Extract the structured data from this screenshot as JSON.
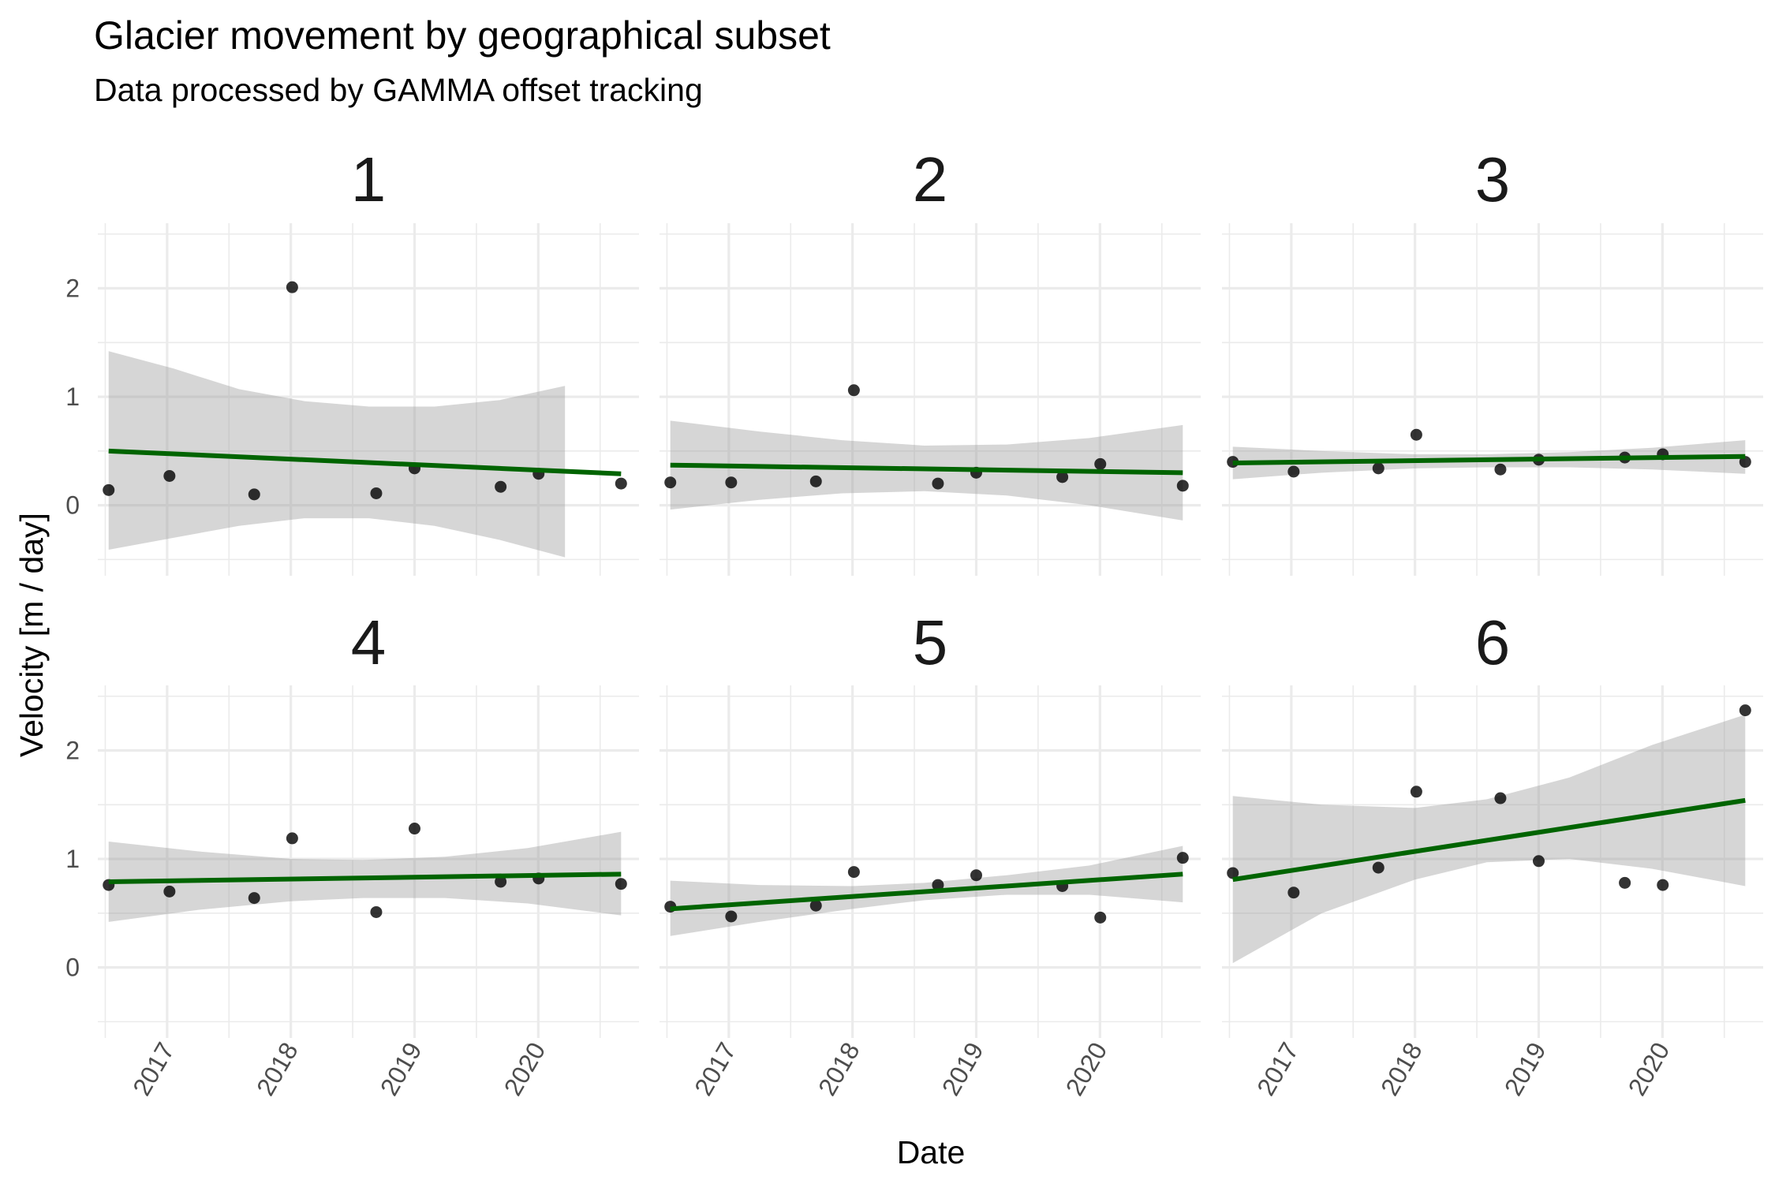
{
  "chart_data": {
    "type": "scatter",
    "title": "Glacier movement by geographical subset",
    "subtitle": "Data processed by GAMMA offset tracking",
    "xlabel": "Date",
    "ylabel": "Velocity [m / day]",
    "x_ticks": [
      "2017",
      "2018",
      "2019",
      "2020"
    ],
    "y_ticks": [
      0,
      1,
      2
    ],
    "xlim": [
      "2016-06-10",
      "2020-10-25"
    ],
    "ylim": [
      -0.65,
      2.6
    ],
    "grid": true,
    "fit": "linear regression with confidence band",
    "fit_color": "#006400",
    "point_color": "#000000",
    "panels": [
      {
        "label": "1",
        "points": [
          [
            "2016-07-12",
            0.14
          ],
          [
            "2017-01-08",
            0.27
          ],
          [
            "2017-09-15",
            0.1
          ],
          [
            "2018-01-05",
            2.01
          ],
          [
            "2018-09-10",
            0.11
          ],
          [
            "2019-01-01",
            0.34
          ],
          [
            "2019-09-12",
            0.17
          ],
          [
            "2020-01-02",
            0.29
          ],
          [
            "2020-09-02",
            0.2
          ]
        ],
        "fit": [
          [
            "2016-07-12",
            0.5
          ],
          [
            "2020-09-02",
            0.29
          ]
        ],
        "ribbon": [
          [
            "2016-07-12",
            -0.41,
            1.42
          ],
          [
            "2017-01-20",
            -0.3,
            1.26
          ],
          [
            "2017-08-01",
            -0.19,
            1.07
          ],
          [
            "2018-02-10",
            -0.12,
            0.96
          ],
          [
            "2018-08-20",
            -0.12,
            0.91
          ],
          [
            "2019-03-01",
            -0.19,
            0.91
          ],
          [
            "2019-09-10",
            -0.32,
            0.97
          ],
          [
            "2020-03-20",
            -0.48,
            1.1
          ]
        ]
      },
      {
        "label": "2",
        "points": [
          [
            "2016-07-12",
            0.21
          ],
          [
            "2017-01-08",
            0.21
          ],
          [
            "2017-09-15",
            0.22
          ],
          [
            "2018-01-05",
            1.06
          ],
          [
            "2018-09-10",
            0.2
          ],
          [
            "2019-01-01",
            0.3
          ],
          [
            "2019-09-12",
            0.26
          ],
          [
            "2020-01-02",
            0.38
          ],
          [
            "2020-09-02",
            0.18
          ]
        ],
        "fit": [
          [
            "2016-07-12",
            0.37
          ],
          [
            "2020-09-02",
            0.3
          ]
        ],
        "ribbon": [
          [
            "2016-07-12",
            -0.04,
            0.78
          ],
          [
            "2017-04-01",
            0.05,
            0.68
          ],
          [
            "2017-12-01",
            0.11,
            0.6
          ],
          [
            "2018-08-01",
            0.13,
            0.55
          ],
          [
            "2019-04-01",
            0.09,
            0.56
          ],
          [
            "2019-12-01",
            0.0,
            0.62
          ],
          [
            "2020-09-02",
            -0.14,
            0.74
          ]
        ]
      },
      {
        "label": "3",
        "points": [
          [
            "2016-07-12",
            0.4
          ],
          [
            "2017-01-08",
            0.31
          ],
          [
            "2017-09-15",
            0.34
          ],
          [
            "2018-01-05",
            0.65
          ],
          [
            "2018-09-10",
            0.33
          ],
          [
            "2019-01-01",
            0.42
          ],
          [
            "2019-09-12",
            0.44
          ],
          [
            "2020-01-02",
            0.47
          ],
          [
            "2020-09-02",
            0.4
          ]
        ],
        "fit": [
          [
            "2016-07-12",
            0.39
          ],
          [
            "2020-09-02",
            0.45
          ]
        ],
        "ribbon": [
          [
            "2016-07-12",
            0.24,
            0.54
          ],
          [
            "2017-04-01",
            0.3,
            0.5
          ],
          [
            "2018-01-01",
            0.34,
            0.47
          ],
          [
            "2018-08-01",
            0.35,
            0.47
          ],
          [
            "2019-04-01",
            0.35,
            0.49
          ],
          [
            "2019-12-01",
            0.33,
            0.53
          ],
          [
            "2020-09-02",
            0.29,
            0.6
          ]
        ]
      },
      {
        "label": "4",
        "points": [
          [
            "2016-07-12",
            0.76
          ],
          [
            "2017-01-08",
            0.7
          ],
          [
            "2017-09-15",
            0.64
          ],
          [
            "2018-01-05",
            1.19
          ],
          [
            "2018-09-10",
            0.51
          ],
          [
            "2019-01-01",
            1.28
          ],
          [
            "2019-09-12",
            0.79
          ],
          [
            "2020-01-02",
            0.82
          ],
          [
            "2020-09-02",
            0.77
          ]
        ],
        "fit": [
          [
            "2016-07-12",
            0.79
          ],
          [
            "2020-09-02",
            0.86
          ]
        ],
        "ribbon": [
          [
            "2016-07-12",
            0.42,
            1.16
          ],
          [
            "2017-04-01",
            0.53,
            1.07
          ],
          [
            "2018-01-01",
            0.61,
            1.0
          ],
          [
            "2018-08-01",
            0.64,
            0.99
          ],
          [
            "2019-04-01",
            0.64,
            1.02
          ],
          [
            "2019-12-01",
            0.59,
            1.1
          ],
          [
            "2020-09-02",
            0.48,
            1.25
          ]
        ]
      },
      {
        "label": "5",
        "points": [
          [
            "2016-07-12",
            0.56
          ],
          [
            "2017-01-08",
            0.47
          ],
          [
            "2017-09-15",
            0.57
          ],
          [
            "2018-01-05",
            0.88
          ],
          [
            "2018-09-10",
            0.76
          ],
          [
            "2019-01-01",
            0.85
          ],
          [
            "2019-09-12",
            0.75
          ],
          [
            "2020-01-02",
            0.46
          ],
          [
            "2020-09-02",
            1.01
          ]
        ],
        "fit": [
          [
            "2016-07-12",
            0.54
          ],
          [
            "2020-09-02",
            0.86
          ]
        ],
        "ribbon": [
          [
            "2016-07-12",
            0.29,
            0.8
          ],
          [
            "2017-04-01",
            0.42,
            0.76
          ],
          [
            "2018-01-01",
            0.54,
            0.75
          ],
          [
            "2018-08-01",
            0.62,
            0.78
          ],
          [
            "2019-04-01",
            0.67,
            0.85
          ],
          [
            "2019-12-01",
            0.67,
            0.94
          ],
          [
            "2020-09-02",
            0.6,
            1.12
          ]
        ]
      },
      {
        "label": "6",
        "points": [
          [
            "2016-07-12",
            0.87
          ],
          [
            "2017-01-08",
            0.69
          ],
          [
            "2017-09-15",
            0.92
          ],
          [
            "2018-01-05",
            1.62
          ],
          [
            "2018-09-10",
            1.56
          ],
          [
            "2019-01-01",
            0.98
          ],
          [
            "2019-09-12",
            0.78
          ],
          [
            "2020-01-02",
            0.76
          ],
          [
            "2020-09-02",
            2.37
          ]
        ],
        "fit": [
          [
            "2016-07-12",
            0.81
          ],
          [
            "2020-09-02",
            1.54
          ]
        ],
        "ribbon": [
          [
            "2016-07-12",
            0.04,
            1.58
          ],
          [
            "2017-04-01",
            0.5,
            1.5
          ],
          [
            "2018-01-01",
            0.81,
            1.47
          ],
          [
            "2018-08-01",
            0.97,
            1.55
          ],
          [
            "2019-04-01",
            1.0,
            1.75
          ],
          [
            "2019-12-01",
            0.91,
            2.05
          ],
          [
            "2020-09-02",
            0.75,
            2.33
          ]
        ]
      }
    ]
  }
}
